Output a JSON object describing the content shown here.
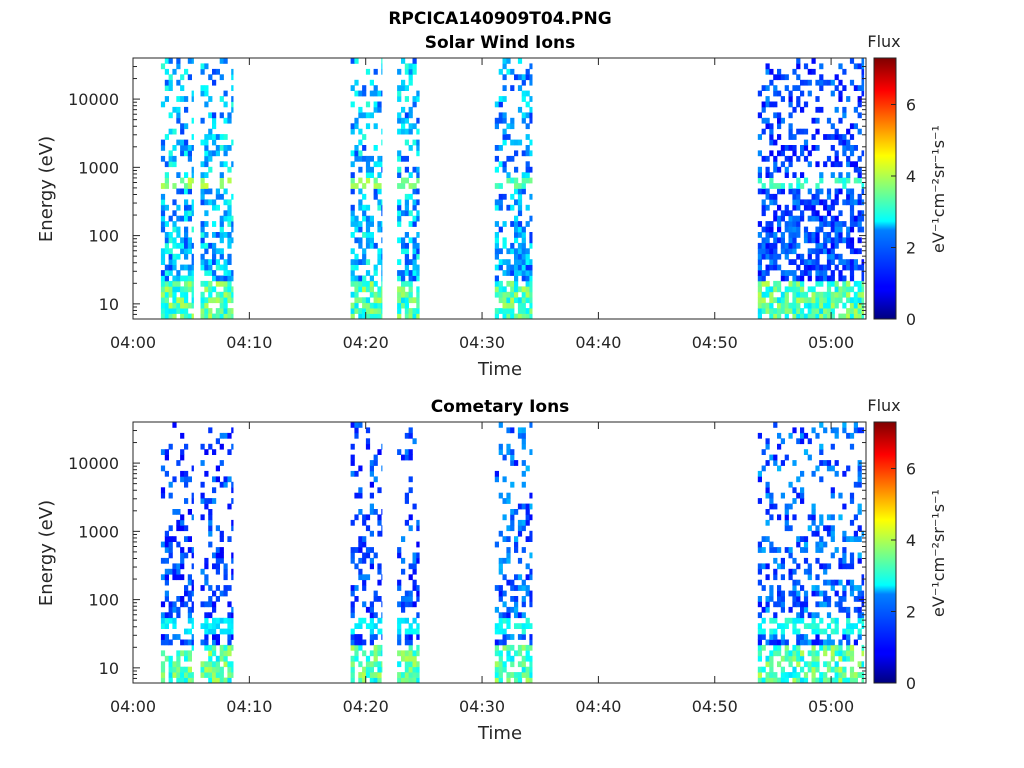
{
  "figure_title": "RPCICA140909T04.PNG",
  "chart_data": [
    {
      "type": "heatmap",
      "title": "Solar Wind Ions",
      "xlabel": "Time",
      "ylabel": "Energy (eV)",
      "x_ticks": [
        "04:00",
        "04:10",
        "04:20",
        "04:30",
        "04:40",
        "04:50",
        "05:00"
      ],
      "y_ticks": [
        "10",
        "100",
        "1000",
        "10000"
      ],
      "y_scale": "log",
      "ylim": [
        6,
        40000
      ],
      "xlim_minutes": [
        0,
        63
      ],
      "colorbar": {
        "title": "Flux",
        "label": "eV⁻¹cm⁻²sr⁻¹s⁻¹",
        "ticks": [
          "0",
          "2",
          "4",
          "6"
        ],
        "range": [
          0,
          7.3
        ]
      },
      "bursts": [
        {
          "start_min": 2.4,
          "end_min": 5.2,
          "peak_energy_ev": 600,
          "peak_flux": 4.0,
          "level": 2.2
        },
        {
          "start_min": 5.8,
          "end_min": 8.6,
          "peak_energy_ev": 600,
          "peak_flux": 4.0,
          "level": 2.2
        },
        {
          "start_min": 18.7,
          "end_min": 21.4,
          "peak_energy_ev": 600,
          "peak_flux": 4.0,
          "level": 2.2
        },
        {
          "start_min": 22.7,
          "end_min": 24.6,
          "peak_energy_ev": 600,
          "peak_flux": 4.0,
          "level": 2.2
        },
        {
          "start_min": 31.1,
          "end_min": 34.3,
          "peak_energy_ev": 600,
          "peak_flux": 3.5,
          "level": 2.0
        },
        {
          "start_min": 53.7,
          "end_min": 62.8,
          "peak_energy_ev": 600,
          "peak_flux": 3.2,
          "level": 1.4
        }
      ]
    },
    {
      "type": "heatmap",
      "title": "Cometary Ions",
      "xlabel": "Time",
      "ylabel": "Energy (eV)",
      "x_ticks": [
        "04:00",
        "04:10",
        "04:20",
        "04:30",
        "04:40",
        "04:50",
        "05:00"
      ],
      "y_ticks": [
        "10",
        "100",
        "1000",
        "10000"
      ],
      "y_scale": "log",
      "ylim": [
        6,
        40000
      ],
      "xlim_minutes": [
        0,
        63
      ],
      "colorbar": {
        "title": "Flux",
        "label": "eV⁻¹cm⁻²sr⁻¹s⁻¹",
        "ticks": [
          "0",
          "2",
          "4",
          "6"
        ],
        "range": [
          0,
          7.3
        ]
      },
      "bursts": [
        {
          "start_min": 2.4,
          "end_min": 5.2,
          "peak_energy_ev": 40,
          "peak_flux": 2.8,
          "level": 1.4
        },
        {
          "start_min": 5.8,
          "end_min": 8.6,
          "peak_energy_ev": 40,
          "peak_flux": 2.8,
          "level": 1.4
        },
        {
          "start_min": 18.7,
          "end_min": 21.4,
          "peak_energy_ev": 40,
          "peak_flux": 2.8,
          "level": 1.4
        },
        {
          "start_min": 22.7,
          "end_min": 24.6,
          "peak_energy_ev": 40,
          "peak_flux": 2.8,
          "level": 1.4
        },
        {
          "start_min": 31.1,
          "end_min": 34.3,
          "peak_energy_ev": 40,
          "peak_flux": 3.0,
          "level": 1.6
        },
        {
          "start_min": 53.7,
          "end_min": 62.8,
          "peak_energy_ev": 40,
          "peak_flux": 3.0,
          "level": 1.6
        }
      ]
    }
  ]
}
